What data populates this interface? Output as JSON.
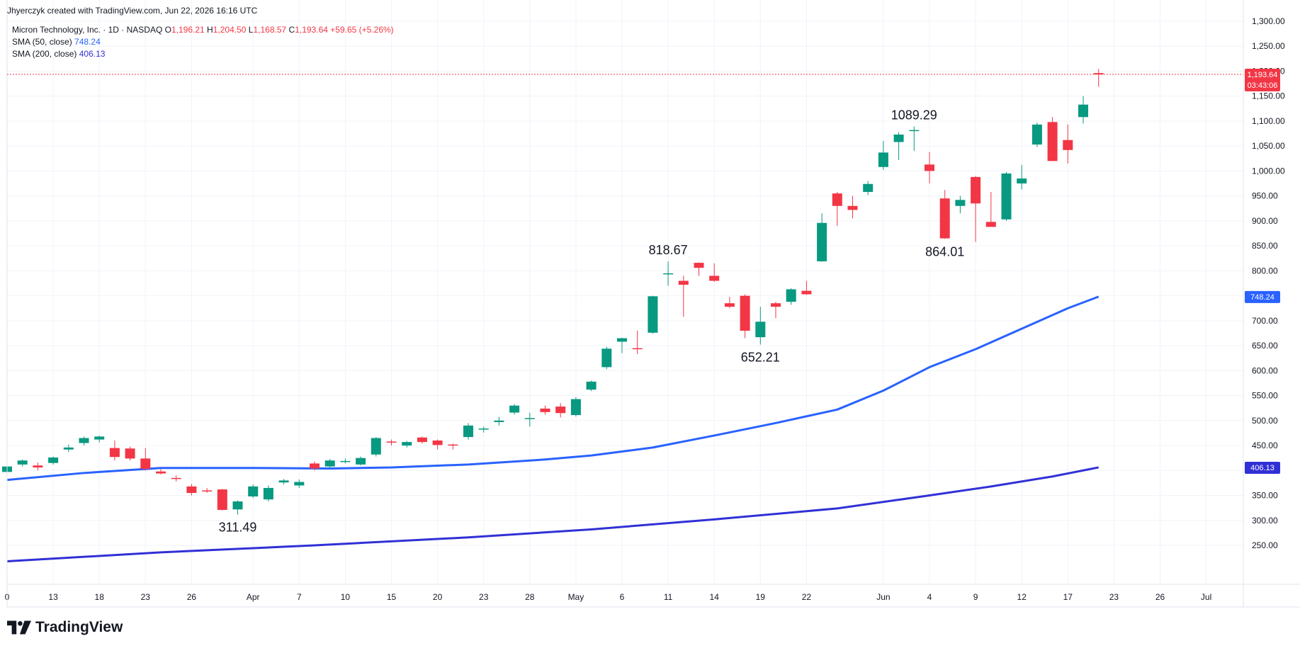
{
  "credit": "Jhyerczyk created with TradingView.com, Jun 22, 2026 16:16 UTC",
  "legend": {
    "symbol": "Micron Technology, Inc. · 1D · NASDAQ",
    "o_label": "O",
    "o_value": "1,196.21",
    "h_label": "H",
    "h_value": "1,204.50",
    "l_label": "L",
    "l_value": "1,168.57",
    "c_label": "C",
    "c_value": "1,193.64",
    "change": "+59.65 (+5.26%)",
    "sma50_label": "SMA (50, close)",
    "sma50_value": "748.24",
    "sma200_label": "SMA (200, close)",
    "sma200_value": "406.13"
  },
  "brand": {
    "name": "TradingView",
    "logo_icon": "tradingview-logo-icon"
  },
  "colors": {
    "up": "#089981",
    "down": "#f23645",
    "sma50": "#2962ff",
    "sma200": "#3130d6",
    "grid": "#f0f3fa",
    "text": "#131722"
  },
  "price_tags": {
    "last_price": "1,193.64",
    "countdown": "03:43:06",
    "sma50": "748.24",
    "sma200": "406.13"
  },
  "chart_data": {
    "type": "candlestick",
    "title": "",
    "xlabel": "",
    "ylabel": "",
    "ylim": [
      200,
      1310
    ],
    "grid": true,
    "y_ticks": [
      250,
      300,
      350,
      400,
      450,
      500,
      550,
      600,
      650,
      700,
      750,
      800,
      850,
      900,
      950,
      1000,
      1050,
      1100,
      1150,
      1200,
      1250,
      1300
    ],
    "y_tick_labels": [
      "250.00",
      "300.00",
      "350.00",
      "400.00",
      "450.00",
      "500.00",
      "550.00",
      "600.00",
      "650.00",
      "700.00",
      "750.00",
      "800.00",
      "850.00",
      "900.00",
      "950.00",
      "1,000.00",
      "1,050.00",
      "1,100.00",
      "1,150.00",
      "1,200.00",
      "1,250.00",
      "1,300.00"
    ],
    "x_ticks": [
      {
        "label": "0",
        "i": 0
      },
      {
        "label": "13",
        "i": 3
      },
      {
        "label": "18",
        "i": 6
      },
      {
        "label": "23",
        "i": 9
      },
      {
        "label": "26",
        "i": 12
      },
      {
        "label": "Apr",
        "i": 16
      },
      {
        "label": "7",
        "i": 19
      },
      {
        "label": "10",
        "i": 22
      },
      {
        "label": "15",
        "i": 25
      },
      {
        "label": "20",
        "i": 28
      },
      {
        "label": "23",
        "i": 31
      },
      {
        "label": "28",
        "i": 34
      },
      {
        "label": "May",
        "i": 37
      },
      {
        "label": "6",
        "i": 40
      },
      {
        "label": "11",
        "i": 43
      },
      {
        "label": "14",
        "i": 46
      },
      {
        "label": "19",
        "i": 49
      },
      {
        "label": "22",
        "i": 52
      },
      {
        "label": "Jun",
        "i": 57
      },
      {
        "label": "4",
        "i": 60
      },
      {
        "label": "9",
        "i": 63
      },
      {
        "label": "12",
        "i": 66
      },
      {
        "label": "17",
        "i": 69
      },
      {
        "label": "23",
        "i": 72
      },
      {
        "label": "26",
        "i": 75
      },
      {
        "label": "Jul",
        "i": 78
      }
    ],
    "candles": [
      {
        "o": 397,
        "h": 418,
        "l": 393,
        "c": 408
      },
      {
        "o": 412,
        "h": 422,
        "l": 408,
        "c": 420
      },
      {
        "o": 410,
        "h": 416,
        "l": 400,
        "c": 406
      },
      {
        "o": 415,
        "h": 428,
        "l": 412,
        "c": 426
      },
      {
        "o": 442,
        "h": 452,
        "l": 437,
        "c": 446
      },
      {
        "o": 455,
        "h": 468,
        "l": 450,
        "c": 465
      },
      {
        "o": 462,
        "h": 470,
        "l": 456,
        "c": 468
      },
      {
        "o": 445,
        "h": 460,
        "l": 420,
        "c": 427
      },
      {
        "o": 444,
        "h": 448,
        "l": 420,
        "c": 424
      },
      {
        "o": 424,
        "h": 445,
        "l": 400,
        "c": 403
      },
      {
        "o": 398,
        "h": 403,
        "l": 392,
        "c": 394
      },
      {
        "o": 385,
        "h": 390,
        "l": 378,
        "c": 384
      },
      {
        "o": 368,
        "h": 373,
        "l": 350,
        "c": 355
      },
      {
        "o": 360,
        "h": 365,
        "l": 355,
        "c": 358
      },
      {
        "o": 362,
        "h": 363,
        "l": 320,
        "c": 321
      },
      {
        "o": 322,
        "h": 340,
        "l": 311.49,
        "c": 338
      },
      {
        "o": 348,
        "h": 372,
        "l": 345,
        "c": 368
      },
      {
        "o": 342,
        "h": 370,
        "l": 338,
        "c": 365
      },
      {
        "o": 376,
        "h": 383,
        "l": 372,
        "c": 380
      },
      {
        "o": 370,
        "h": 382,
        "l": 365,
        "c": 377
      },
      {
        "o": 414,
        "h": 418,
        "l": 400,
        "c": 404
      },
      {
        "o": 408,
        "h": 423,
        "l": 404,
        "c": 420
      },
      {
        "o": 418,
        "h": 424,
        "l": 414,
        "c": 419
      },
      {
        "o": 412,
        "h": 428,
        "l": 410,
        "c": 425
      },
      {
        "o": 432,
        "h": 467,
        "l": 428,
        "c": 465
      },
      {
        "o": 458,
        "h": 462,
        "l": 450,
        "c": 456
      },
      {
        "o": 450,
        "h": 459,
        "l": 446,
        "c": 457
      },
      {
        "o": 466,
        "h": 468,
        "l": 454,
        "c": 457
      },
      {
        "o": 460,
        "h": 462,
        "l": 442,
        "c": 451
      },
      {
        "o": 452,
        "h": 454,
        "l": 442,
        "c": 450
      },
      {
        "o": 467,
        "h": 495,
        "l": 462,
        "c": 490
      },
      {
        "o": 482,
        "h": 488,
        "l": 476,
        "c": 484
      },
      {
        "o": 497,
        "h": 507,
        "l": 490,
        "c": 500
      },
      {
        "o": 516,
        "h": 533,
        "l": 512,
        "c": 530
      },
      {
        "o": 504,
        "h": 516,
        "l": 488,
        "c": 505
      },
      {
        "o": 524,
        "h": 530,
        "l": 512,
        "c": 517
      },
      {
        "o": 528,
        "h": 535,
        "l": 506,
        "c": 515
      },
      {
        "o": 511,
        "h": 547,
        "l": 508,
        "c": 543
      },
      {
        "o": 562,
        "h": 580,
        "l": 559,
        "c": 578
      },
      {
        "o": 607,
        "h": 648,
        "l": 603,
        "c": 644
      },
      {
        "o": 658,
        "h": 666,
        "l": 635,
        "c": 665
      },
      {
        "o": 645,
        "h": 680,
        "l": 633,
        "c": 643
      },
      {
        "o": 676,
        "h": 750,
        "l": 674,
        "c": 749
      },
      {
        "o": 795,
        "h": 818.67,
        "l": 770,
        "c": 795
      },
      {
        "o": 780,
        "h": 790,
        "l": 708,
        "c": 772
      },
      {
        "o": 816,
        "h": 817,
        "l": 790,
        "c": 806
      },
      {
        "o": 790,
        "h": 815,
        "l": 778,
        "c": 780
      },
      {
        "o": 735,
        "h": 748,
        "l": 725,
        "c": 728
      },
      {
        "o": 750,
        "h": 753,
        "l": 665,
        "c": 680
      },
      {
        "o": 667,
        "h": 728,
        "l": 652.21,
        "c": 698
      },
      {
        "o": 735,
        "h": 738,
        "l": 705,
        "c": 728
      },
      {
        "o": 738,
        "h": 765,
        "l": 732,
        "c": 763
      },
      {
        "o": 760,
        "h": 780,
        "l": 752,
        "c": 753
      },
      {
        "o": 819,
        "h": 915,
        "l": 818,
        "c": 896
      },
      {
        "o": 955,
        "h": 958,
        "l": 890,
        "c": 930
      },
      {
        "o": 930,
        "h": 950,
        "l": 905,
        "c": 922
      },
      {
        "o": 958,
        "h": 980,
        "l": 952,
        "c": 974
      },
      {
        "o": 1008,
        "h": 1060,
        "l": 1002,
        "c": 1037
      },
      {
        "o": 1058,
        "h": 1078,
        "l": 1022,
        "c": 1073
      },
      {
        "o": 1082,
        "h": 1089.29,
        "l": 1040,
        "c": 1082
      },
      {
        "o": 1013,
        "h": 1038,
        "l": 975,
        "c": 1000
      },
      {
        "o": 945,
        "h": 962,
        "l": 864.01,
        "c": 865
      },
      {
        "o": 930,
        "h": 950,
        "l": 915,
        "c": 942
      },
      {
        "o": 988,
        "h": 990,
        "l": 858,
        "c": 935
      },
      {
        "o": 898,
        "h": 958,
        "l": 890,
        "c": 888
      },
      {
        "o": 903,
        "h": 998,
        "l": 900,
        "c": 995
      },
      {
        "o": 975,
        "h": 1012,
        "l": 963,
        "c": 985
      },
      {
        "o": 1053,
        "h": 1097,
        "l": 1048,
        "c": 1093
      },
      {
        "o": 1098,
        "h": 1108,
        "l": 1020,
        "c": 1020
      },
      {
        "o": 1062,
        "h": 1093,
        "l": 1015,
        "c": 1042
      },
      {
        "o": 1108,
        "h": 1150,
        "l": 1095,
        "c": 1133
      },
      {
        "o": 1196.21,
        "h": 1204.5,
        "l": 1168.57,
        "c": 1193.64
      }
    ],
    "series": [
      {
        "name": "SMA (50, close)",
        "points": [
          [
            0,
            381
          ],
          [
            5,
            395
          ],
          [
            10,
            405
          ],
          [
            16,
            405
          ],
          [
            21,
            404
          ],
          [
            25,
            406
          ],
          [
            30,
            412
          ],
          [
            35,
            422
          ],
          [
            38,
            430
          ],
          [
            42,
            446
          ],
          [
            46,
            470
          ],
          [
            50,
            495
          ],
          [
            54,
            522
          ],
          [
            57,
            560
          ],
          [
            60,
            607
          ],
          [
            63,
            643
          ],
          [
            66,
            684
          ],
          [
            69,
            725
          ],
          [
            71,
            748.24
          ]
        ]
      },
      {
        "name": "SMA (200, close)",
        "points": [
          [
            0,
            218
          ],
          [
            10,
            236
          ],
          [
            20,
            250
          ],
          [
            30,
            266
          ],
          [
            38,
            282
          ],
          [
            46,
            302
          ],
          [
            54,
            324
          ],
          [
            60,
            350
          ],
          [
            64,
            368
          ],
          [
            68,
            388
          ],
          [
            71,
            406.13
          ]
        ]
      }
    ],
    "annotations": [
      {
        "text": "311.49",
        "i": 15,
        "price": 311.49,
        "pos": "below"
      },
      {
        "text": "818.67",
        "i": 43,
        "price": 818.67,
        "pos": "above"
      },
      {
        "text": "652.21",
        "i": 49,
        "price": 652.21,
        "pos": "below"
      },
      {
        "text": "1089.29",
        "i": 59,
        "price": 1089.29,
        "pos": "above"
      },
      {
        "text": "864.01",
        "i": 61,
        "price": 864.01,
        "pos": "below"
      }
    ]
  }
}
